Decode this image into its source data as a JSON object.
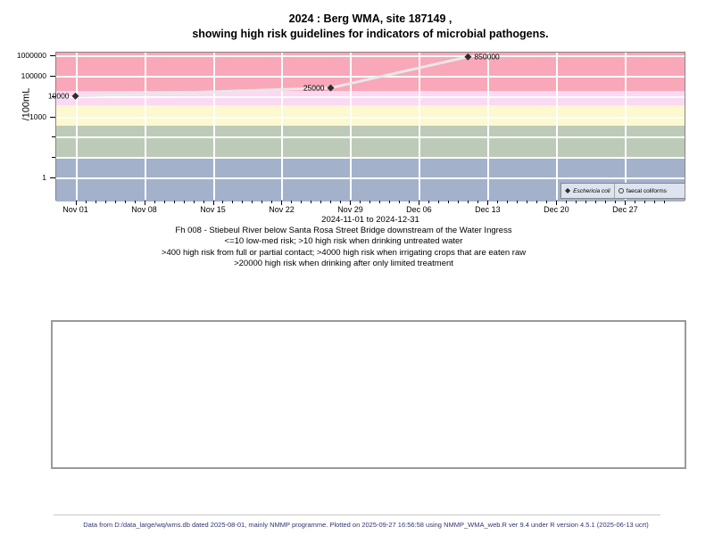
{
  "page": {
    "title_line1": "2024 : Berg WMA, site 187149 ,",
    "title_line2": "showing high risk guidelines for indicators of microbial pathogens.",
    "captions": [
      "Fh 008 - Stiebeul River below Santa Rosa Street Bridge downstream of the Water Ingress",
      "<=10 low-med risk; >10 high risk when drinking untreated water",
      ">400 high risk from full or partial contact; >4000 high risk when irrigating crops that are eaten raw",
      ">20000 high risk when drinking after only limited treatment"
    ],
    "footer": "Data from D:/data_large/wq/wms.db dated 2025-08-01, mainly NMMP programme. Plotted on 2025-09-27 16:56:58 using NMMP_WMA_web.R ver 9.4 under R version 4.5.1 (2025-06-13 ucrt)"
  },
  "chart_data": {
    "type": "line",
    "title": "2024 : Berg WMA, site 187149, showing high risk guidelines for indicators of microbial pathogens.",
    "xlabel": "2024-11-01 to 2024-12-31",
    "ylabel": "/100mL",
    "y_scale": "log10",
    "x_domain_days": [
      -2.05,
      62.15
    ],
    "y_domain_log10": [
      -1.14,
      6.18
    ],
    "x_ticks": [
      {
        "day": 0,
        "label": "Nov 01"
      },
      {
        "day": 7,
        "label": "Nov 08"
      },
      {
        "day": 14,
        "label": "Nov 15"
      },
      {
        "day": 21,
        "label": "Nov 22"
      },
      {
        "day": 28,
        "label": "Nov 29"
      },
      {
        "day": 35,
        "label": "Dec 06"
      },
      {
        "day": 42,
        "label": "Dec 13"
      },
      {
        "day": 49,
        "label": "Dec 20"
      },
      {
        "day": 56,
        "label": "Dec 27"
      }
    ],
    "x_minor_tick_days": {
      "from": 0,
      "to": 60
    },
    "y_ticks": [
      {
        "value": 1,
        "label": "1"
      },
      {
        "value": 10,
        "label": ""
      },
      {
        "value": 100,
        "label": ""
      },
      {
        "value": 1000,
        "label": "1000"
      },
      {
        "value": 10000,
        "label": ""
      },
      {
        "value": 100000,
        "label": "100000"
      },
      {
        "value": 1000000,
        "label": "1000000"
      }
    ],
    "grid_color": "#ffffff",
    "bands": [
      {
        "from": null,
        "to": 10,
        "color": "#a3b1cb"
      },
      {
        "from": 10,
        "to": 400,
        "color": "#becab8"
      },
      {
        "from": 400,
        "to": 4000,
        "color": "#fcf8cf"
      },
      {
        "from": 4000,
        "to": 20000,
        "color": "#fbd9f2"
      },
      {
        "from": 20000,
        "to": null,
        "color": "#f8a8b8"
      }
    ],
    "series": [
      {
        "name": "Eschericia coli",
        "marker": "diamond",
        "line_color": "#e8e8e8",
        "marker_color": "#2e2e2e",
        "points": [
          {
            "day": 0,
            "value": 10000,
            "label": "10000",
            "label_side": "left"
          },
          {
            "day": 26,
            "value": 25000,
            "label": "25000",
            "label_side": "left"
          },
          {
            "day": 40,
            "value": 850000,
            "label": "850000",
            "label_side": "right"
          }
        ]
      },
      {
        "name": "faecal coliforms",
        "marker": "open-circle",
        "points": []
      }
    ],
    "legend": [
      {
        "marker": "diamond",
        "label": "Eschericia coli",
        "italic": true
      },
      {
        "marker": "open-circle",
        "label": "faecal coliforms",
        "italic": false
      }
    ]
  }
}
